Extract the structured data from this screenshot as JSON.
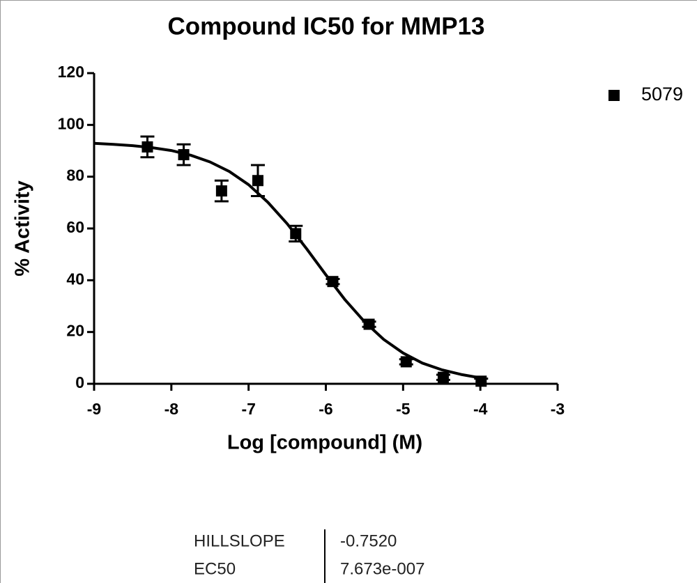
{
  "chart_data": {
    "type": "scatter",
    "title": "Compound IC50 for MMP13",
    "xlabel": "Log [compound] (M)",
    "ylabel": "% Activity",
    "x": [
      -8.31,
      -7.84,
      -7.35,
      -6.88,
      -6.39,
      -5.91,
      -5.44,
      -4.96,
      -4.48,
      -3.99
    ],
    "series": [
      {
        "name": "5079",
        "color": "#000000",
        "values": [
          91.5,
          88.5,
          74.5,
          78.5,
          58,
          39.5,
          23,
          8.5,
          2.5,
          1
        ],
        "errors": [
          4,
          4,
          4,
          6,
          3,
          1,
          1,
          1,
          1,
          1
        ]
      }
    ],
    "fit": {
      "x": [
        -9,
        -8.75,
        -8.5,
        -8.25,
        -8,
        -7.75,
        -7.5,
        -7.25,
        -7,
        -6.75,
        -6.5,
        -6.25,
        -6,
        -5.75,
        -5.5,
        -5.25,
        -5,
        -4.75,
        -4.5,
        -4.25,
        -4
      ],
      "values": [
        92.9,
        92.5,
        92.0,
        91.2,
        90.1,
        88.3,
        85.7,
        82.0,
        76.9,
        70.1,
        61.8,
        52.2,
        42.1,
        32.4,
        24.0,
        17.1,
        11.9,
        8.0,
        5.4,
        3.6,
        2.3
      ]
    },
    "xlim": [
      -9,
      -3
    ],
    "xticks": [
      -9,
      -8,
      -7,
      -6,
      -5,
      -4,
      -3
    ],
    "ylim": [
      0,
      120
    ],
    "yticks": [
      0,
      20,
      40,
      60,
      80,
      100,
      120
    ]
  },
  "table": {
    "rows": [
      [
        "HILLSLOPE",
        "-0.7520"
      ],
      [
        "EC50",
        "7.673e-007"
      ]
    ]
  }
}
